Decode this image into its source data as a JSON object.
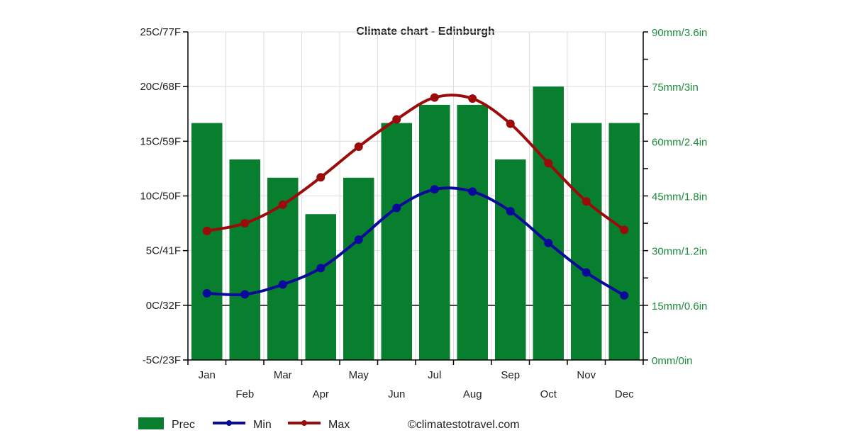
{
  "chart_data": {
    "type": "bar+line",
    "title": "Climate chart - Edinburgh",
    "categories": [
      "Jan",
      "Feb",
      "Mar",
      "Apr",
      "May",
      "Jun",
      "Jul",
      "Aug",
      "Sep",
      "Oct",
      "Nov",
      "Dec"
    ],
    "series": [
      {
        "name": "Prec",
        "type": "bar",
        "axis": "right",
        "unit": "mm",
        "color": "#087f2f",
        "values": [
          65,
          55,
          50,
          40,
          50,
          65,
          70,
          70,
          55,
          75,
          65,
          65
        ]
      },
      {
        "name": "Min",
        "type": "line",
        "axis": "left",
        "unit": "C",
        "color": "#0a0a9a",
        "values": [
          1.1,
          1.0,
          1.9,
          3.4,
          6.0,
          8.9,
          10.6,
          10.4,
          8.6,
          5.7,
          3.0,
          0.9
        ]
      },
      {
        "name": "Max",
        "type": "line",
        "axis": "left",
        "unit": "C",
        "color": "#9a0c0c",
        "values": [
          6.8,
          7.5,
          9.2,
          11.7,
          14.5,
          17.0,
          19.0,
          18.9,
          16.6,
          13.0,
          9.5,
          6.9
        ]
      }
    ],
    "left_axis": {
      "ylim": [
        -5,
        25
      ],
      "ticks": [
        25,
        20,
        15,
        10,
        5,
        0,
        -5
      ],
      "tick_labels": [
        "25C/77F",
        "20C/68F",
        "15C/59F",
        "10C/50F",
        "5C/41F",
        "0C/32F",
        "-5C/23F"
      ]
    },
    "right_axis": {
      "ylim": [
        0,
        90
      ],
      "ticks": [
        90,
        75,
        60,
        45,
        30,
        15,
        0
      ],
      "tick_labels": [
        "90mm/3.6in",
        "75mm/3in",
        "60mm/2.4in",
        "45mm/1.8in",
        "30mm/1.2in",
        "15mm/0.6in",
        "0mm/0in"
      ],
      "color": "#1a8a3a"
    },
    "grid": true,
    "legend_position": "bottom-left",
    "credit": "©climatestotravel.com"
  }
}
